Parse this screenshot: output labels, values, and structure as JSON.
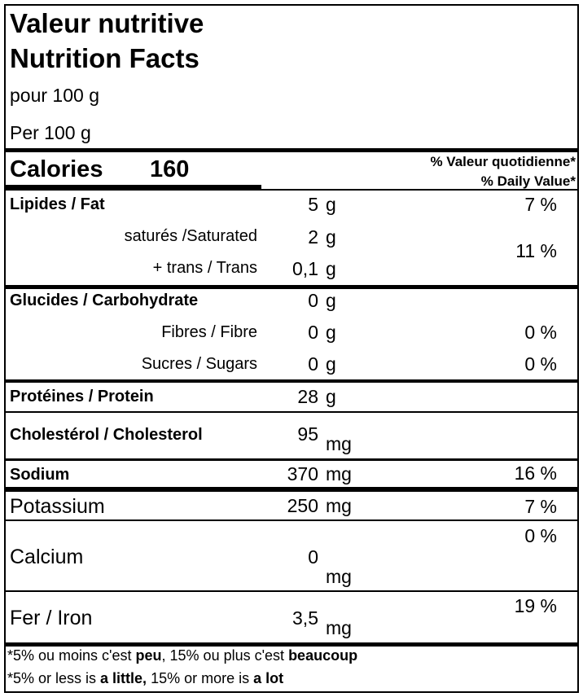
{
  "header": {
    "title_fr": "Valeur nutritive",
    "title_en": "Nutrition Facts",
    "serving_fr": "pour 100 g",
    "serving_en": "Per 100 g"
  },
  "calories": {
    "label": "Calories",
    "value": "160",
    "dv_header_fr": "% Valeur quotidienne*",
    "dv_header_en": "% Daily Value*"
  },
  "nutrients": {
    "fat": {
      "label": "Lipides / Fat",
      "amount": "5",
      "unit": "g",
      "dv": "7 %"
    },
    "saturated": {
      "label": "saturés /Saturated",
      "amount": "2",
      "unit": "g"
    },
    "trans": {
      "label": "+ trans / Trans",
      "amount": "0,1",
      "unit": "g"
    },
    "sat_trans_dv": "11 %",
    "carbohydrate": {
      "label": "Glucides / Carbohydrate",
      "amount": "0",
      "unit": "g"
    },
    "fibre": {
      "label": "Fibres / Fibre",
      "amount": "0",
      "unit": "g",
      "dv": "0 %"
    },
    "sugars": {
      "label": "Sucres / Sugars",
      "amount": "0",
      "unit": "g",
      "dv": "0 %"
    },
    "protein": {
      "label": "Protéines / Protein",
      "amount": "28",
      "unit": "g"
    },
    "cholesterol": {
      "label": "Cholestérol / Cholesterol",
      "amount": "95",
      "unit": "mg"
    },
    "sodium": {
      "label": "Sodium",
      "amount": "370",
      "unit": "mg",
      "dv": "16 %"
    },
    "potassium": {
      "label": "Potassium",
      "amount": "250",
      "unit": "mg",
      "dv": "7 %"
    },
    "calcium": {
      "label": "Calcium",
      "amount": "0",
      "unit": "mg",
      "dv": "0 %"
    },
    "iron": {
      "label": "Fer / Iron",
      "amount": "3,5",
      "unit": "mg",
      "dv": "19 %"
    }
  },
  "footnote": {
    "fr_1": "*5% ou moins c'est ",
    "fr_2": "peu",
    "fr_3": ", 15% ou plus c'est ",
    "fr_4": "beaucoup",
    "en_1": "*5% or less is ",
    "en_2": "a little,",
    "en_3": " 15% or more is ",
    "en_4": "a lot"
  }
}
